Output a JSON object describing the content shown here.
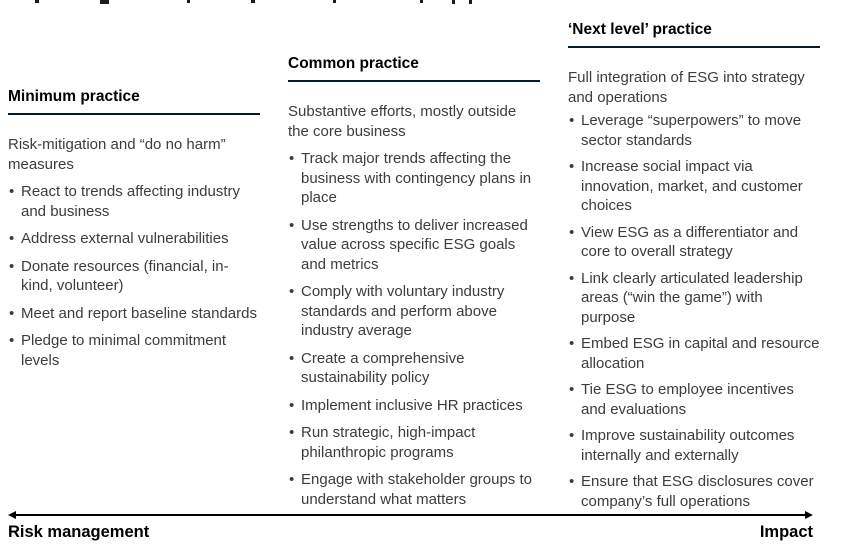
{
  "columns": [
    {
      "title": "Minimum practice",
      "subtitle": "Risk-mitigation and “do no harm” measures",
      "bullets": [
        "React to trends affecting industry and business",
        "Address external vulnerabilities",
        "Donate resources (financial, in-kind, volunteer)",
        "Meet and report baseline standards",
        "Pledge to minimal commitment levels"
      ]
    },
    {
      "title": "Common practice",
      "subtitle": "Substantive efforts, mostly outside the core business",
      "bullets": [
        "Track major trends affecting the business with contingency plans in place",
        "Use strengths to deliver increased value across specific ESG goals and metrics",
        "Comply with voluntary industry standards and perform above industry average",
        "Create a comprehensive sustainability policy",
        "Implement inclusive HR practices",
        "Run strategic, high-impact philanthropic programs",
        "Engage with stakeholder groups to understand what matters"
      ]
    },
    {
      "title": "‘Next level’ practice",
      "subtitle": "Full integration of ESG into strategy and operations",
      "bullets": [
        "Leverage “superpowers” to move sector standards",
        "Increase social impact via innovation, market, and customer choices",
        "View ESG as a differentiator and core to overall strategy",
        "Link clearly articulated leadership areas (“win the game”) with purpose",
        "Embed ESG in capital and resource allocation",
        "Tie ESG to employee incentives and evaluations",
        "Improve sustainability outcomes internally and externally",
        "Ensure that ESG disclosures cover company’s full operations"
      ]
    }
  ],
  "axis": {
    "left_label": "Risk management",
    "right_label": "Impact"
  },
  "colors": {
    "title_underline": "#051c2c",
    "heading_text": "#000000",
    "body_text": "#3c3c3c",
    "arrow": "#000000",
    "background": "#ffffff"
  }
}
